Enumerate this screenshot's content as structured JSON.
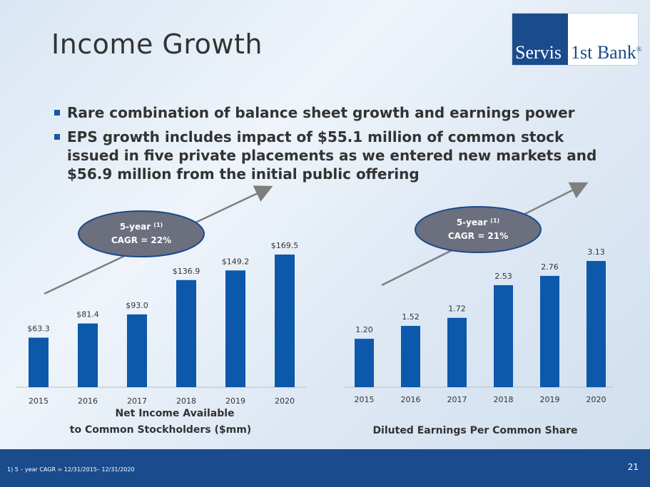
{
  "title": "Income Growth",
  "logo": {
    "left": "Servis",
    "right": "1st Bank",
    "mark": "®"
  },
  "bullets": [
    "Rare combination of balance sheet growth and earnings power",
    "EPS growth includes impact of $55.1 million of common stock issued in five private placements as we entered new markets and $56.9 million from the initial public offering"
  ],
  "colors": {
    "bar": "#0c58ab",
    "footer": "#1a4b8c",
    "ellipse": "#6b6f7e",
    "arrow": "#7f7f7f"
  },
  "chart_data": [
    {
      "type": "bar",
      "categories": [
        "2015",
        "2016",
        "2017",
        "2018",
        "2019",
        "2020"
      ],
      "values": [
        63.3,
        81.4,
        93.0,
        136.9,
        149.2,
        169.5
      ],
      "data_labels": [
        "$63.3",
        "$81.4",
        "$93.0",
        "$136.9",
        "$149.2",
        "$169.5"
      ],
      "xlabel_line1": "Net Income Available",
      "xlabel_line2": "to Common Stockholders ($mm)",
      "callout_line1": "5-year",
      "callout_sup": "(1)",
      "callout_line2": "CAGR = 22%",
      "ylim": [
        0,
        195
      ]
    },
    {
      "type": "bar",
      "categories": [
        "2015",
        "2016",
        "2017",
        "2018",
        "2019",
        "2020"
      ],
      "values": [
        1.2,
        1.52,
        1.72,
        2.53,
        2.76,
        3.13
      ],
      "data_labels": [
        "1.20",
        "1.52",
        "1.72",
        "2.53",
        "2.76",
        "3.13"
      ],
      "xlabel_line1": "Diluted Earnings Per Common Share",
      "xlabel_line2": "",
      "callout_line1": "5-year",
      "callout_sup": "(1)",
      "callout_line2": "CAGR = 21%",
      "ylim": [
        0,
        3.6
      ]
    }
  ],
  "footer": {
    "note": "1)    5 – year CAGR = 12/31/2015– 12/31/2020",
    "page": "21"
  }
}
